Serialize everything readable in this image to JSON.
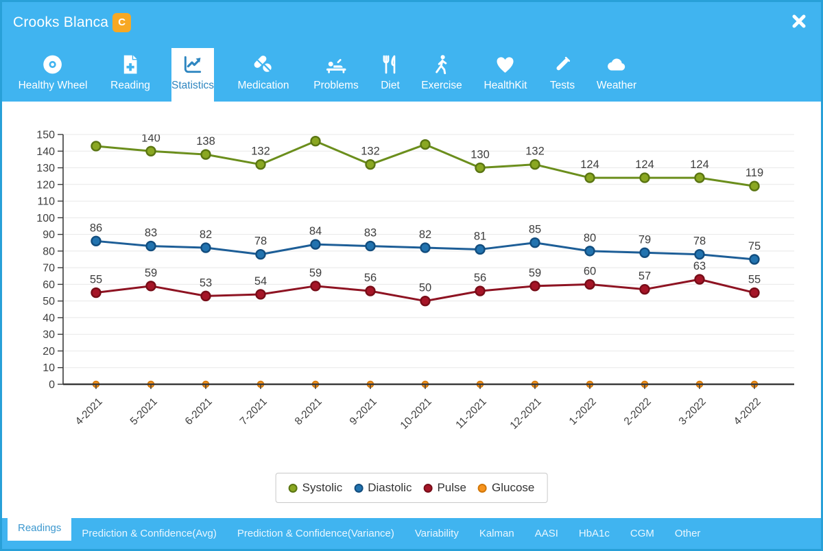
{
  "header": {
    "title": "Crooks Blanca",
    "badge": "C",
    "close_icon": "close-icon"
  },
  "nav": {
    "items": [
      {
        "label": "Healthy Wheel",
        "icon": "healthy-wheel-icon",
        "active": false
      },
      {
        "label": "Reading",
        "icon": "reading-icon",
        "active": false
      },
      {
        "label": "Statistics",
        "icon": "statistics-icon",
        "active": true
      },
      {
        "label": "Medication",
        "icon": "medication-icon",
        "active": false
      },
      {
        "label": "Problems",
        "icon": "problems-icon",
        "active": false
      },
      {
        "label": "Diet",
        "icon": "diet-icon",
        "active": false
      },
      {
        "label": "Exercise",
        "icon": "exercise-icon",
        "active": false
      },
      {
        "label": "HealthKit",
        "icon": "healthkit-icon",
        "active": false
      },
      {
        "label": "Tests",
        "icon": "tests-icon",
        "active": false
      },
      {
        "label": "Weather",
        "icon": "weather-icon",
        "active": false
      }
    ]
  },
  "chart_data": {
    "type": "line",
    "categories": [
      "4-2021",
      "5-2021",
      "6-2021",
      "7-2021",
      "8-2021",
      "9-2021",
      "10-2021",
      "11-2021",
      "12-2021",
      "1-2022",
      "2-2022",
      "3-2022",
      "4-2022"
    ],
    "ylim": [
      0,
      150
    ],
    "ytick_step": 10,
    "grid": true,
    "legend_position": "bottom",
    "series": [
      {
        "name": "Systolic",
        "line_color": "#6b8e1c",
        "marker_fill": "#8aa722",
        "marker_stroke": "#5a7512",
        "values": [
          143,
          140,
          138,
          132,
          146,
          132,
          144,
          130,
          132,
          124,
          124,
          124,
          119
        ],
        "labels": [
          null,
          "140",
          "138",
          "132",
          null,
          "132",
          null,
          "130",
          "132",
          "124",
          "124",
          "124",
          "119"
        ]
      },
      {
        "name": "Diastolic",
        "line_color": "#1d5e97",
        "marker_fill": "#2273af",
        "marker_stroke": "#124d7e",
        "values": [
          86,
          83,
          82,
          78,
          84,
          83,
          82,
          81,
          85,
          80,
          79,
          78,
          75
        ],
        "labels": [
          "86",
          "83",
          "82",
          "78",
          "84",
          "83",
          "82",
          "81",
          "85",
          "80",
          "79",
          "78",
          "75"
        ]
      },
      {
        "name": "Pulse",
        "line_color": "#8e1322",
        "marker_fill": "#a51527",
        "marker_stroke": "#770d18",
        "values": [
          55,
          59,
          53,
          54,
          59,
          56,
          50,
          56,
          59,
          60,
          57,
          63,
          55
        ],
        "labels": [
          "55",
          "59",
          "53",
          "54",
          "59",
          "56",
          "50",
          "56",
          "59",
          "60",
          "57",
          "63",
          "55"
        ]
      },
      {
        "name": "Glucose",
        "line_color": "#e8890f",
        "marker_fill": "#f7941e",
        "marker_stroke": "#d27708",
        "values": [
          0,
          0,
          0,
          0,
          0,
          0,
          0,
          0,
          0,
          0,
          0,
          0,
          0
        ],
        "labels": [
          null,
          null,
          null,
          null,
          null,
          null,
          null,
          null,
          null,
          null,
          null,
          null,
          null
        ]
      }
    ]
  },
  "legend": {
    "items": [
      {
        "label": "Systolic",
        "fill": "#8aa722",
        "stroke": "#5a7512"
      },
      {
        "label": "Diastolic",
        "fill": "#2273af",
        "stroke": "#124d7e"
      },
      {
        "label": "Pulse",
        "fill": "#a51527",
        "stroke": "#770d18"
      },
      {
        "label": "Glucose",
        "fill": "#f7941e",
        "stroke": "#d27708"
      }
    ]
  },
  "footer": {
    "tabs": [
      {
        "label": "Readings",
        "active": true
      },
      {
        "label": "Prediction & Confidence(Avg)",
        "active": false
      },
      {
        "label": "Prediction & Confidence(Variance)",
        "active": false
      },
      {
        "label": "Variability",
        "active": false
      },
      {
        "label": "Kalman",
        "active": false
      },
      {
        "label": "AASI",
        "active": false
      },
      {
        "label": "HbA1c",
        "active": false
      },
      {
        "label": "CGM",
        "active": false
      },
      {
        "label": "Other",
        "active": false
      }
    ]
  },
  "colors": {
    "accent_blue": "#40b4f0",
    "border_blue": "#28a0d8",
    "active_text_blue": "#2e86c0",
    "badge_orange": "#f7a824",
    "axis": "#3a3a3a",
    "grid": "#e8e8e8",
    "label_text": "#3d3d3d"
  }
}
